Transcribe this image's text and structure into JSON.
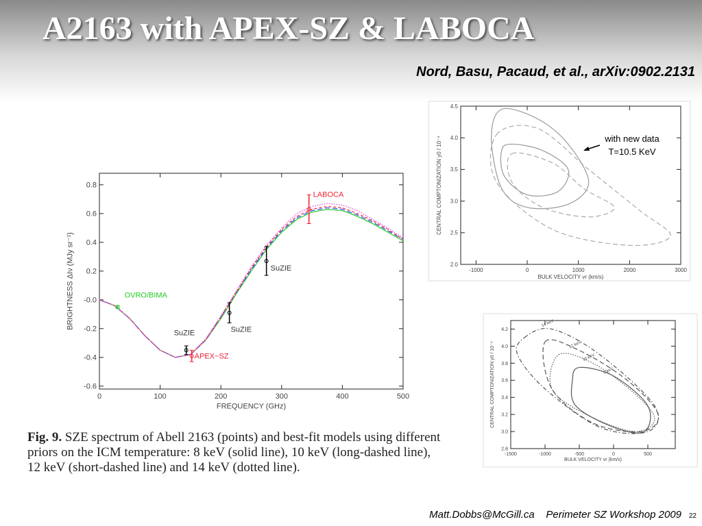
{
  "slide": {
    "title": "A2163 with APEX-SZ & LABOCA",
    "citation": "Nord, Basu, Pacaud, et al., arXiv:0902.2131",
    "caption_label": "Fig. 9.",
    "caption": "SZE spectrum of Abell 2163 (points) and best-fit models using different priors on the ICM temperature: 8 keV (solid line), 10 keV (long-dashed line), 12 keV (short-dashed line) and 14 keV (dotted line).",
    "email": "Matt.Dobbs@McGill.ca",
    "event": "Perimeter SZ Workshop 2009",
    "page": "22"
  },
  "chart_data": [
    {
      "type": "line",
      "xlabel": "FREQUENCY (GHz)",
      "ylabel": "BRIGHTNESS ΔIν (MJy sr⁻¹)",
      "xlim": [
        0,
        500
      ],
      "ylim": [
        -0.62,
        0.88
      ],
      "xticks": [
        0,
        100,
        200,
        300,
        400,
        500
      ],
      "yticks": [
        -0.6,
        -0.4,
        -0.2,
        {
          "value": 0,
          "label": "-0.0"
        },
        0.2,
        0.4,
        0.6,
        0.8
      ],
      "x": [
        0,
        25,
        50,
        75,
        100,
        125,
        150,
        175,
        200,
        225,
        250,
        275,
        300,
        325,
        350,
        375,
        400,
        425,
        450,
        475,
        500
      ],
      "series": [
        {
          "color": "#33cc33",
          "style": "solid",
          "values": [
            0,
            -0.04,
            -0.13,
            -0.25,
            -0.35,
            -0.4,
            -0.38,
            -0.28,
            -0.13,
            0.04,
            0.2,
            0.35,
            0.47,
            0.56,
            0.61,
            0.63,
            0.62,
            0.58,
            0.53,
            0.47,
            0.41
          ]
        },
        {
          "color": "#3355ee",
          "style": "dashed",
          "values": [
            0,
            -0.04,
            -0.13,
            -0.25,
            -0.35,
            -0.4,
            -0.38,
            -0.28,
            -0.12,
            0.05,
            0.21,
            0.36,
            0.48,
            0.57,
            0.62,
            0.64,
            0.63,
            0.59,
            0.54,
            0.48,
            0.42
          ]
        },
        {
          "color": "#ee3344",
          "style": "shortdash",
          "values": [
            0,
            -0.04,
            -0.13,
            -0.25,
            -0.35,
            -0.4,
            -0.38,
            -0.28,
            -0.12,
            0.05,
            0.22,
            0.37,
            0.49,
            0.58,
            0.63,
            0.65,
            0.64,
            0.6,
            0.55,
            0.49,
            0.42
          ]
        },
        {
          "color": "#dd44dd",
          "style": "dotted",
          "values": [
            0,
            -0.04,
            -0.13,
            -0.25,
            -0.35,
            -0.4,
            -0.38,
            -0.27,
            -0.11,
            0.06,
            0.23,
            0.38,
            0.5,
            0.6,
            0.65,
            0.67,
            0.66,
            0.62,
            0.56,
            0.5,
            0.43
          ]
        }
      ],
      "points": [
        {
          "label": "OVRO/BIMA",
          "x": 30,
          "y": -0.05,
          "error": 0.01,
          "color": "#22cc22"
        },
        {
          "label": "SuZIE",
          "x": 143,
          "y": -0.35,
          "error": 0.03,
          "color": "#000000"
        },
        {
          "label": "APEX−SZ",
          "x": 152,
          "y": -0.39,
          "error": 0.04,
          "color": "#ee2233"
        },
        {
          "label": "SuZIE",
          "x": 214,
          "y": -0.09,
          "error": 0.07,
          "color": "#000000"
        },
        {
          "label": "SuZIE",
          "x": 275,
          "y": 0.27,
          "error": 0.1,
          "color": "#000000"
        },
        {
          "label": "LABOCA",
          "x": 345,
          "y": 0.63,
          "error": 0.1,
          "color": "#ee2233"
        }
      ]
    },
    {
      "type": "contour",
      "xlabel": "BULK VELOCITY vr (km/s)",
      "ylabel": "CENTRAL COMPTONIZATION y0 / 10⁻⁴",
      "annotation": [
        "with new data",
        "T=10.5 KeV"
      ],
      "xlim": [
        -1300,
        3000
      ],
      "ylim": [
        2.0,
        4.5
      ],
      "xticks": [
        -1000,
        0,
        1000,
        2000,
        3000
      ],
      "yticks": [
        {
          "value": 2,
          "label": "2.0"
        },
        2.5,
        {
          "value": 3,
          "label": "3.0"
        },
        3.5,
        {
          "value": 4,
          "label": "4.0"
        },
        4.5
      ],
      "series": [
        {
          "color": "#999999",
          "style": "solid",
          "x": [
            -500,
            200,
            800,
            1200,
            800,
            0,
            -500,
            -700
          ],
          "y": [
            4.45,
            4.3,
            3.9,
            3.3,
            2.95,
            2.9,
            3.2,
            4.0
          ]
        },
        {
          "color": "#999999",
          "style": "solid",
          "x": [
            -300,
            300,
            800,
            600,
            0,
            -450,
            -500
          ],
          "y": [
            3.9,
            3.8,
            3.5,
            3.15,
            3.1,
            3.4,
            3.8
          ]
        },
        {
          "color": "#aaaaaa",
          "style": "dashed",
          "x": [
            -600,
            200,
            1200,
            2200,
            2800,
            2000,
            500,
            -600
          ],
          "y": [
            4.05,
            4.15,
            3.5,
            2.85,
            2.45,
            2.3,
            2.55,
            3.3
          ]
        },
        {
          "color": "#aaaaaa",
          "style": "dashed",
          "x": [
            -300,
            500,
            1100,
            1700,
            1200,
            300,
            -300
          ],
          "y": [
            3.75,
            3.6,
            3.2,
            2.9,
            2.75,
            2.9,
            3.3
          ]
        }
      ]
    },
    {
      "type": "contour",
      "xlabel": "BULK VELOCITY vr (km/s)",
      "ylabel": "CENTRAL COMPTONIZATION y0 / 10⁻⁴",
      "xlim": [
        -1500,
        900
      ],
      "ylim": [
        2.8,
        4.3
      ],
      "xticks": [
        -1500,
        -1000,
        -500,
        0,
        500
      ],
      "yticks": [
        2.8,
        {
          "value": 3,
          "label": "3.0"
        },
        3.2,
        3.4,
        3.6,
        3.8,
        {
          "value": 4,
          "label": "4.0"
        },
        4.2
      ],
      "series": [
        {
          "label": "14 keV",
          "color": "#555555",
          "style": "dashdot",
          "x": [
            -1300,
            -900,
            -200,
            600,
            500,
            -200,
            -1000,
            -1400
          ],
          "y": [
            4.1,
            4.2,
            3.9,
            3.3,
            3.0,
            3.05,
            3.5,
            3.9
          ]
        },
        {
          "label": "12 keV",
          "color": "#555555",
          "style": "dashed",
          "x": [
            -1000,
            -500,
            200,
            650,
            400,
            -300,
            -900
          ],
          "y": [
            4.05,
            3.95,
            3.6,
            3.2,
            3.0,
            3.1,
            3.5
          ]
        },
        {
          "label": "10 keV",
          "color": "#555555",
          "style": "dotted",
          "x": [
            -800,
            -300,
            300,
            600,
            300,
            -400,
            -900
          ],
          "y": [
            3.9,
            3.8,
            3.45,
            3.15,
            3.0,
            3.2,
            3.5
          ]
        },
        {
          "label": "8 keV",
          "color": "#555555",
          "style": "solid",
          "x": [
            -500,
            0,
            500,
            450,
            0,
            -550,
            -600
          ],
          "y": [
            3.75,
            3.65,
            3.3,
            3.0,
            3.05,
            3.3,
            3.6
          ]
        }
      ]
    }
  ]
}
